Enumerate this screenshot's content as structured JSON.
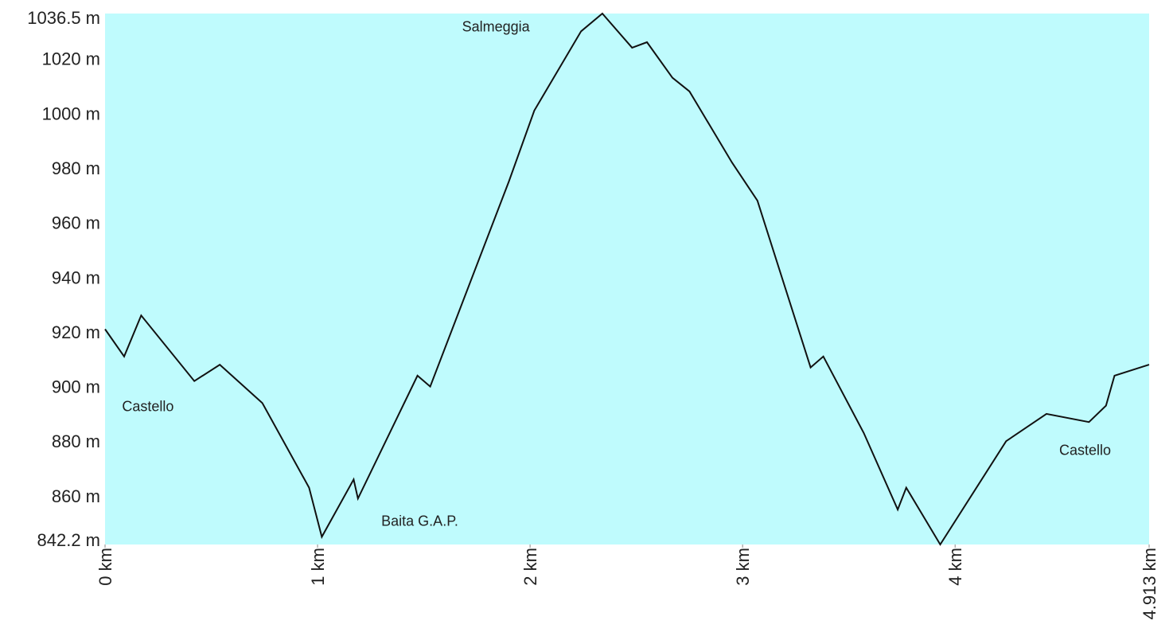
{
  "chart_data": {
    "type": "line",
    "title": "",
    "xlabel": "",
    "ylabel": "",
    "background_color": "#bffbfd",
    "line_color": "#111111",
    "grid": false,
    "xlim": [
      0,
      4.913
    ],
    "ylim": [
      842.2,
      1036.5
    ],
    "y_ticks": [
      {
        "value": 842.2,
        "label": "842.2 m"
      },
      {
        "value": 860,
        "label": "860 m"
      },
      {
        "value": 880,
        "label": "880 m"
      },
      {
        "value": 900,
        "label": "900 m"
      },
      {
        "value": 920,
        "label": "920 m"
      },
      {
        "value": 940,
        "label": "940 m"
      },
      {
        "value": 960,
        "label": "960 m"
      },
      {
        "value": 980,
        "label": "980 m"
      },
      {
        "value": 1000,
        "label": "1000 m"
      },
      {
        "value": 1020,
        "label": "1020 m"
      },
      {
        "value": 1036.5,
        "label": "1036.5 m"
      }
    ],
    "x_ticks": [
      {
        "value": 0,
        "label": "0 km"
      },
      {
        "value": 1,
        "label": "1 km"
      },
      {
        "value": 2,
        "label": "2 km"
      },
      {
        "value": 3,
        "label": "3 km"
      },
      {
        "value": 4,
        "label": "4 km"
      },
      {
        "value": 4.913,
        "label": "4.913 km"
      }
    ],
    "series": [
      {
        "x": [
          0,
          0.09,
          0.17,
          0.42,
          0.54,
          0.74,
          0.96,
          1.02,
          1.17,
          1.19,
          1.47,
          1.53,
          1.9,
          2.02,
          2.24,
          2.34,
          2.48,
          2.55,
          2.67,
          2.75,
          2.95,
          3.07,
          3.32,
          3.38,
          3.57,
          3.73,
          3.77,
          3.93,
          4.24,
          4.43,
          4.63,
          4.71,
          4.75,
          4.913
        ],
        "y": [
          921,
          911,
          926,
          902,
          908,
          894,
          863,
          845,
          866,
          859,
          904,
          900,
          975,
          1001,
          1030,
          1036.5,
          1024,
          1026,
          1013,
          1008,
          982,
          968,
          907,
          911,
          883,
          855,
          863,
          842.2,
          880,
          890,
          887,
          893,
          904,
          908
        ]
      }
    ],
    "annotations": [
      {
        "text": "Castello",
        "x": 0.08,
        "y": 891
      },
      {
        "text": "Baita G.A.P.",
        "x": 1.3,
        "y": 849
      },
      {
        "text": "Salmeggia",
        "x": 1.68,
        "y": 1030
      },
      {
        "text": "Castello",
        "x": 4.49,
        "y": 875
      }
    ]
  }
}
